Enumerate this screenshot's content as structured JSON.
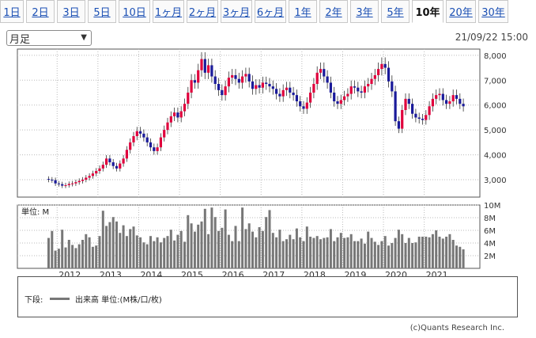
{
  "tabs": [
    "1日",
    "2日",
    "3日",
    "5日",
    "10日",
    "1ヶ月",
    "2ヶ月",
    "3ヶ月",
    "6ヶ月",
    "1年",
    "2年",
    "3年",
    "5年",
    "10年",
    "20年",
    "30年"
  ],
  "active_tab": "10年",
  "period_select": {
    "value": "月足"
  },
  "datetime": "21/09/22 15:00",
  "volume_unit_label": "単位: M",
  "legend": {
    "label": "下段:",
    "description": "出来高 単位:(M株/口/枚)"
  },
  "credit": "(c)Quants Research Inc.",
  "colors": {
    "up": "#e0003c",
    "down": "#1a1a9a",
    "volume": "#777777",
    "grid": "#bbbbbb"
  },
  "chart_data": {
    "type": "candlestick",
    "price_axis": {
      "ticks": [
        3000,
        4000,
        5000,
        6000,
        7000,
        8000
      ],
      "tick_labels": [
        "3,000",
        "4,000",
        "5,000",
        "6,000",
        "7,000",
        "8,000"
      ],
      "range": [
        2300,
        8250
      ]
    },
    "volume_axis": {
      "ticks": [
        2,
        4,
        6,
        8,
        10
      ],
      "tick_labels": [
        "2M",
        "4M",
        "6M",
        "8M",
        "10M"
      ],
      "range": [
        0,
        10
      ]
    },
    "x_axis": {
      "years": [
        "2012",
        "2013",
        "2014",
        "2015",
        "2016",
        "2017",
        "2018",
        "2019",
        "2020",
        "2021"
      ]
    },
    "start_month": "2011-10",
    "prices": [
      3000,
      2980,
      2850,
      2820,
      2760,
      2780,
      2830,
      2850,
      2900,
      2950,
      3000,
      3080,
      3150,
      3250,
      3350,
      3450,
      3600,
      3850,
      3700,
      3550,
      3450,
      3650,
      3850,
      4200,
      4500,
      4750,
      4950,
      4850,
      4700,
      4500,
      4300,
      4150,
      4300,
      4700,
      5000,
      5300,
      5550,
      5700,
      5500,
      5750,
      6050,
      6500,
      7000,
      6900,
      7400,
      7850,
      7300,
      7600,
      7150,
      6850,
      6600,
      6400,
      6750,
      7100,
      7200,
      7050,
      6900,
      7150,
      7250,
      6950,
      6650,
      6800,
      6700,
      6900,
      6850,
      6750,
      6650,
      6450,
      6350,
      6600,
      6700,
      6500,
      6400,
      6150,
      5950,
      5850,
      6100,
      6500,
      6850,
      7300,
      7450,
      7150,
      6900,
      6500,
      6150,
      6050,
      6200,
      6350,
      6450,
      6750,
      6700,
      6550,
      6500,
      6750,
      6850,
      7050,
      7200,
      7450,
      7650,
      7500,
      6950,
      6550,
      5350,
      5050,
      5800,
      6250,
      6050,
      5650,
      5500,
      5450,
      5400,
      5600,
      5950,
      6250,
      6400,
      6450,
      6200,
      6050,
      6150,
      6400,
      6250,
      6050,
      5950
    ],
    "volumes": [
      4.8,
      5.9,
      2.8,
      3.1,
      6.1,
      3.3,
      4.5,
      3.7,
      3.2,
      3.8,
      4.5,
      5.4,
      4.9,
      3.4,
      3.6,
      5.1,
      9.1,
      6.7,
      7.3,
      8.1,
      7.4,
      5.6,
      6.8,
      5.1,
      6.2,
      6.6,
      5.2,
      4.9,
      4.1,
      3.8,
      5.1,
      4.3,
      4.9,
      4.1,
      4.8,
      5.1,
      6.1,
      4.4,
      5.3,
      5.9,
      4.2,
      8.4,
      7.1,
      5.8,
      6.9,
      7.4,
      9.4,
      5.4,
      9.6,
      8.1,
      5.9,
      6.4,
      9.3,
      5.3,
      4.3,
      6.7,
      4.3,
      9.6,
      6.2,
      7.1,
      5.8,
      4.9,
      6.5,
      5.9,
      8.1,
      9.2,
      5.6,
      4.9,
      6.1,
      4.3,
      4.6,
      5.3,
      4.6,
      6.3,
      4.9,
      4.3,
      6.6,
      5.0,
      4.8,
      5.1,
      4.6,
      4.8,
      4.9,
      6.2,
      4.3,
      4.9,
      5.6,
      4.8,
      4.9,
      5.4,
      4.3,
      4.3,
      4.7,
      3.9,
      5.8,
      4.8,
      4.2,
      3.7,
      4.3,
      5.1,
      3.6,
      4.0,
      4.8,
      6.1,
      5.4,
      4.0,
      4.8,
      4.0,
      4.1,
      5.0,
      5.0,
      5.0,
      4.9,
      5.4,
      6.0,
      5.0,
      4.7,
      5.0,
      5.4,
      4.5,
      3.6,
      3.4,
      3.0
    ]
  }
}
